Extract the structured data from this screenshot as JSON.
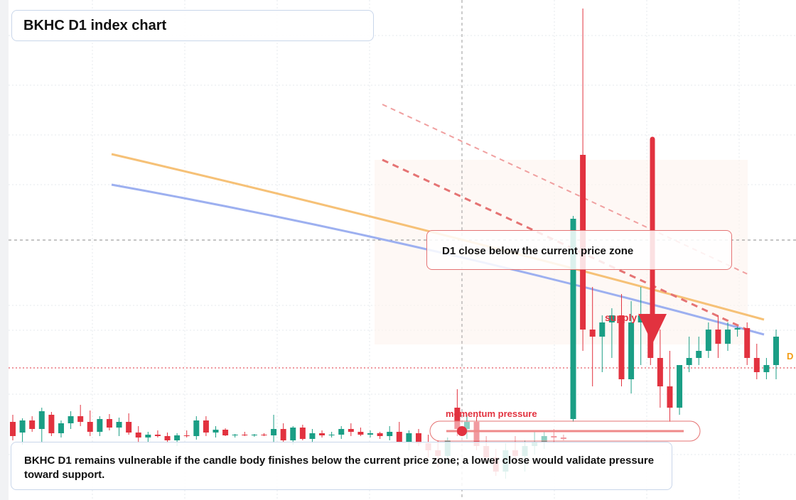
{
  "chart_data": {
    "type": "candlestick",
    "title": "BKHC D1 index chart",
    "callout": "D1 close below the current price zone",
    "zone_label": "supply",
    "momentum_label": "momentum pressure",
    "edge_label": "D",
    "note": "BKHC D1 remains vulnerable if the candle body finishes below the current price zone; a lower close would validate pressure toward support.",
    "up_color": "#1a9e85",
    "down_color": "#e2323f",
    "open": [
      110,
      95,
      112,
      100,
      120,
      94,
      108,
      118,
      110,
      96,
      114,
      102,
      110,
      95,
      88,
      92,
      90,
      84,
      91,
      90,
      112,
      95,
      99,
      91,
      92,
      91,
      92,
      91,
      100,
      84,
      102,
      86,
      94,
      91,
      92,
      100,
      96,
      92,
      94,
      90,
      96,
      82,
      94,
      80,
      70,
      62,
      130,
      100,
      110,
      76,
      60,
      40,
      70,
      62,
      76,
      82,
      90,
      88,
      114,
      486,
      240,
      230,
      250,
      260,
      170,
      250,
      260,
      200,
      160,
      130,
      190,
      200,
      210,
      240,
      220,
      240,
      242,
      200,
      180,
      190
    ],
    "high": [
      120,
      115,
      118,
      130,
      124,
      112,
      125,
      134,
      126,
      118,
      121,
      116,
      122,
      104,
      96,
      98,
      95,
      94,
      98,
      118,
      118,
      104,
      101,
      93,
      96,
      93,
      94,
      120,
      108,
      104,
      106,
      100,
      98,
      96,
      104,
      108,
      102,
      98,
      96,
      104,
      110,
      98,
      100,
      92,
      84,
      88,
      156,
      120,
      118,
      90,
      72,
      80,
      90,
      84,
      98,
      96,
      100,
      92,
      400,
      692,
      300,
      260,
      270,
      290,
      280,
      300,
      270,
      240,
      210,
      190,
      230,
      230,
      250,
      260,
      250,
      244,
      250,
      220,
      200,
      240
    ],
    "low": [
      84,
      78,
      96,
      80,
      90,
      88,
      100,
      104,
      90,
      90,
      98,
      90,
      92,
      80,
      82,
      88,
      80,
      76,
      88,
      85,
      90,
      88,
      90,
      88,
      90,
      89,
      90,
      80,
      82,
      78,
      84,
      80,
      88,
      88,
      86,
      90,
      90,
      88,
      86,
      84,
      80,
      70,
      76,
      60,
      46,
      50,
      90,
      86,
      70,
      50,
      34,
      30,
      56,
      40,
      64,
      72,
      80,
      84,
      110,
      210,
      160,
      180,
      200,
      160,
      150,
      190,
      190,
      130,
      110,
      120,
      180,
      190,
      200,
      200,
      210,
      230,
      190,
      170,
      170,
      170
    ],
    "close": [
      90,
      112,
      100,
      125,
      94,
      108,
      118,
      110,
      96,
      114,
      102,
      110,
      95,
      88,
      92,
      90,
      84,
      91,
      90,
      112,
      95,
      99,
      91,
      92,
      91,
      92,
      91,
      100,
      84,
      102,
      86,
      94,
      91,
      92,
      100,
      96,
      92,
      94,
      90,
      96,
      82,
      94,
      80,
      70,
      62,
      84,
      100,
      110,
      76,
      60,
      40,
      70,
      62,
      76,
      82,
      90,
      88,
      86,
      396,
      240,
      230,
      250,
      260,
      170,
      250,
      260,
      200,
      160,
      130,
      190,
      200,
      210,
      240,
      220,
      240,
      242,
      200,
      180,
      190,
      230
    ]
  }
}
